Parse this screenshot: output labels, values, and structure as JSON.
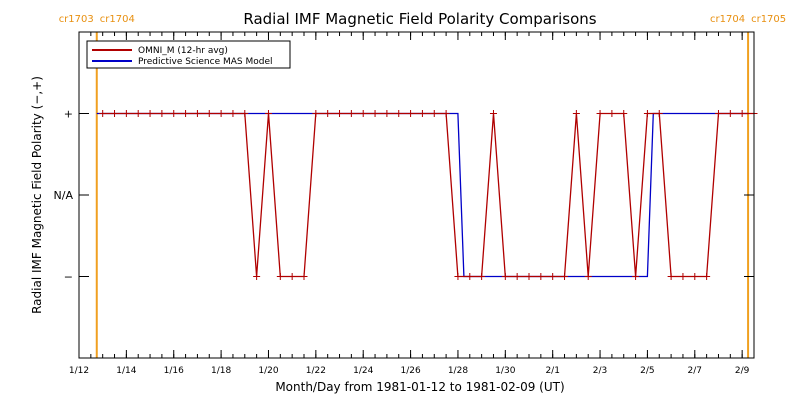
{
  "chart_data": {
    "type": "line",
    "title": "Radial IMF Magnetic Field Polarity Comparisons",
    "xlabel": "Month/Day from 1981-01-12 to 1981-02-09 (UT)",
    "ylabel": "Radial IMF Magnetic Field Polarity (−,+)",
    "xlim": [
      "1981-01-12T00:00",
      "1981-02-09T12:00"
    ],
    "x_ticks": [
      "1/12",
      "1/14",
      "1/16",
      "1/18",
      "1/20",
      "1/22",
      "1/24",
      "1/26",
      "1/28",
      "1/30",
      "2/1",
      "2/3",
      "2/5",
      "2/7",
      "2/9"
    ],
    "y_ticks": [
      "+",
      "N/A",
      "−"
    ],
    "ylim": [
      -2,
      2
    ],
    "carrington_markers": [
      {
        "time": "1981-01-12T18:00",
        "label_left": "cr1703",
        "label_right": "cr1704"
      },
      {
        "time": "1981-02-09T06:00",
        "label_left": "cr1704",
        "label_right": "cr1705"
      }
    ],
    "legend_position": "top-left",
    "series": [
      {
        "name": "OMNI_M (12-hr avg)",
        "color": "#b00000",
        "x": [
          "1981-01-13T00:00",
          "1981-01-13T12:00",
          "1981-01-14T00:00",
          "1981-01-14T12:00",
          "1981-01-15T00:00",
          "1981-01-15T12:00",
          "1981-01-16T00:00",
          "1981-01-16T12:00",
          "1981-01-17T00:00",
          "1981-01-17T12:00",
          "1981-01-18T00:00",
          "1981-01-18T12:00",
          "1981-01-19T00:00",
          "1981-01-19T12:00",
          "1981-01-20T00:00",
          "1981-01-20T12:00",
          "1981-01-21T00:00",
          "1981-01-21T12:00",
          "1981-01-22T00:00",
          "1981-01-22T12:00",
          "1981-01-23T00:00",
          "1981-01-23T12:00",
          "1981-01-24T00:00",
          "1981-01-24T12:00",
          "1981-01-25T00:00",
          "1981-01-25T12:00",
          "1981-01-26T00:00",
          "1981-01-26T12:00",
          "1981-01-27T00:00",
          "1981-01-27T12:00",
          "1981-01-28T00:00",
          "1981-01-28T12:00",
          "1981-01-29T00:00",
          "1981-01-29T12:00",
          "1981-01-30T00:00",
          "1981-01-30T12:00",
          "1981-01-31T00:00",
          "1981-01-31T12:00",
          "1981-02-01T00:00",
          "1981-02-01T12:00",
          "1981-02-02T00:00",
          "1981-02-02T12:00",
          "1981-02-03T00:00",
          "1981-02-03T12:00",
          "1981-02-04T00:00",
          "1981-02-04T12:00",
          "1981-02-05T00:00",
          "1981-02-05T12:00",
          "1981-02-06T00:00",
          "1981-02-06T12:00",
          "1981-02-07T00:00",
          "1981-02-07T12:00",
          "1981-02-08T00:00",
          "1981-02-08T12:00",
          "1981-02-09T00:00",
          "1981-02-09T12:00"
        ],
        "y": [
          1,
          1,
          1,
          1,
          1,
          1,
          1,
          1,
          1,
          1,
          1,
          1,
          1,
          -1,
          1,
          -1,
          -1,
          -1,
          1,
          1,
          1,
          1,
          1,
          1,
          1,
          1,
          1,
          1,
          1,
          1,
          -1,
          -1,
          -1,
          1,
          -1,
          -1,
          -1,
          -1,
          -1,
          -1,
          1,
          -1,
          1,
          1,
          1,
          -1,
          1,
          1,
          -1,
          -1,
          -1,
          -1,
          1,
          1,
          1,
          1
        ]
      },
      {
        "name": "Predictive Science MAS Model",
        "color": "#0000c8",
        "x": [
          "1981-01-12T18:00",
          "1981-01-28T00:00",
          "1981-01-28T06:00",
          "1981-02-05T00:00",
          "1981-02-05T06:00",
          "1981-02-09T06:00"
        ],
        "y": [
          1,
          1,
          -1,
          -1,
          1,
          1
        ]
      }
    ]
  }
}
